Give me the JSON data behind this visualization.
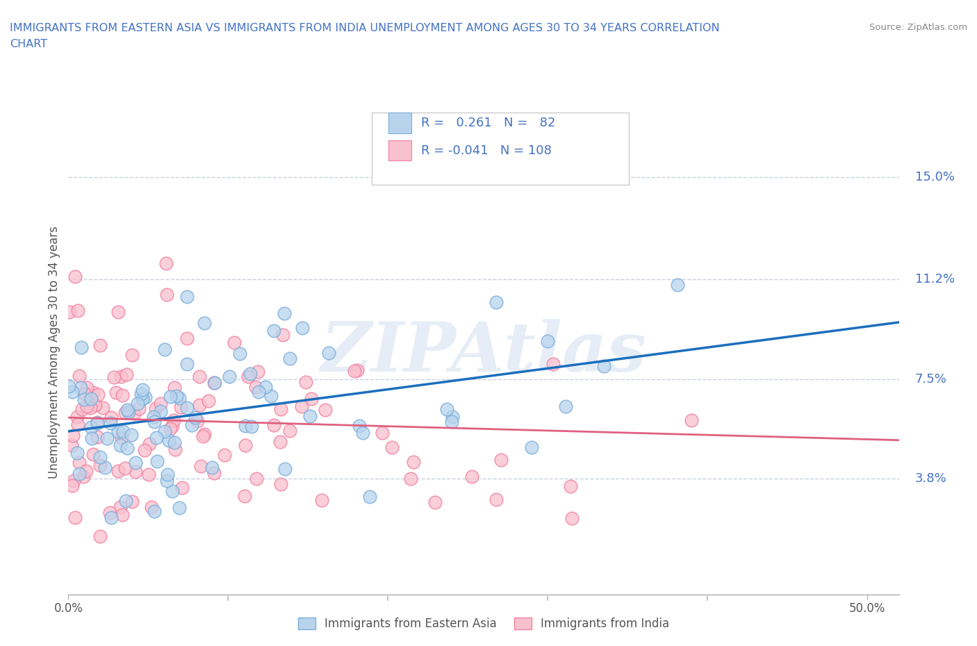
{
  "title_line1": "IMMIGRANTS FROM EASTERN ASIA VS IMMIGRANTS FROM INDIA UNEMPLOYMENT AMONG AGES 30 TO 34 YEARS CORRELATION",
  "title_line2": "CHART",
  "source": "Source: ZipAtlas.com",
  "ylabel": "Unemployment Among Ages 30 to 34 years",
  "xlim": [
    0.0,
    0.52
  ],
  "ylim": [
    -0.005,
    0.175
  ],
  "yticks": [
    0.038,
    0.075,
    0.112,
    0.15
  ],
  "yticklabels": [
    "3.8%",
    "7.5%",
    "11.2%",
    "15.0%"
  ],
  "color_eastern_asia_fill": "#b8d4ed",
  "color_eastern_asia_edge": "#7aadda",
  "color_india_fill": "#f9c0ce",
  "color_india_edge": "#f080a0",
  "line_color_eastern_asia": "#1a6fbd",
  "line_color_india": "#e06080",
  "R_eastern_asia": 0.261,
  "N_eastern_asia": 82,
  "R_india": -0.041,
  "N_india": 108,
  "legend_label_eastern_asia": "Immigrants from Eastern Asia",
  "legend_label_india": "Immigrants from India",
  "watermark": "ZIPAtlas",
  "title_color": "#4472c4",
  "axis_label_color": "#555555",
  "tick_label_color": "#4472c4",
  "grid_color": "#c8cfe0",
  "source_color": "#888888"
}
